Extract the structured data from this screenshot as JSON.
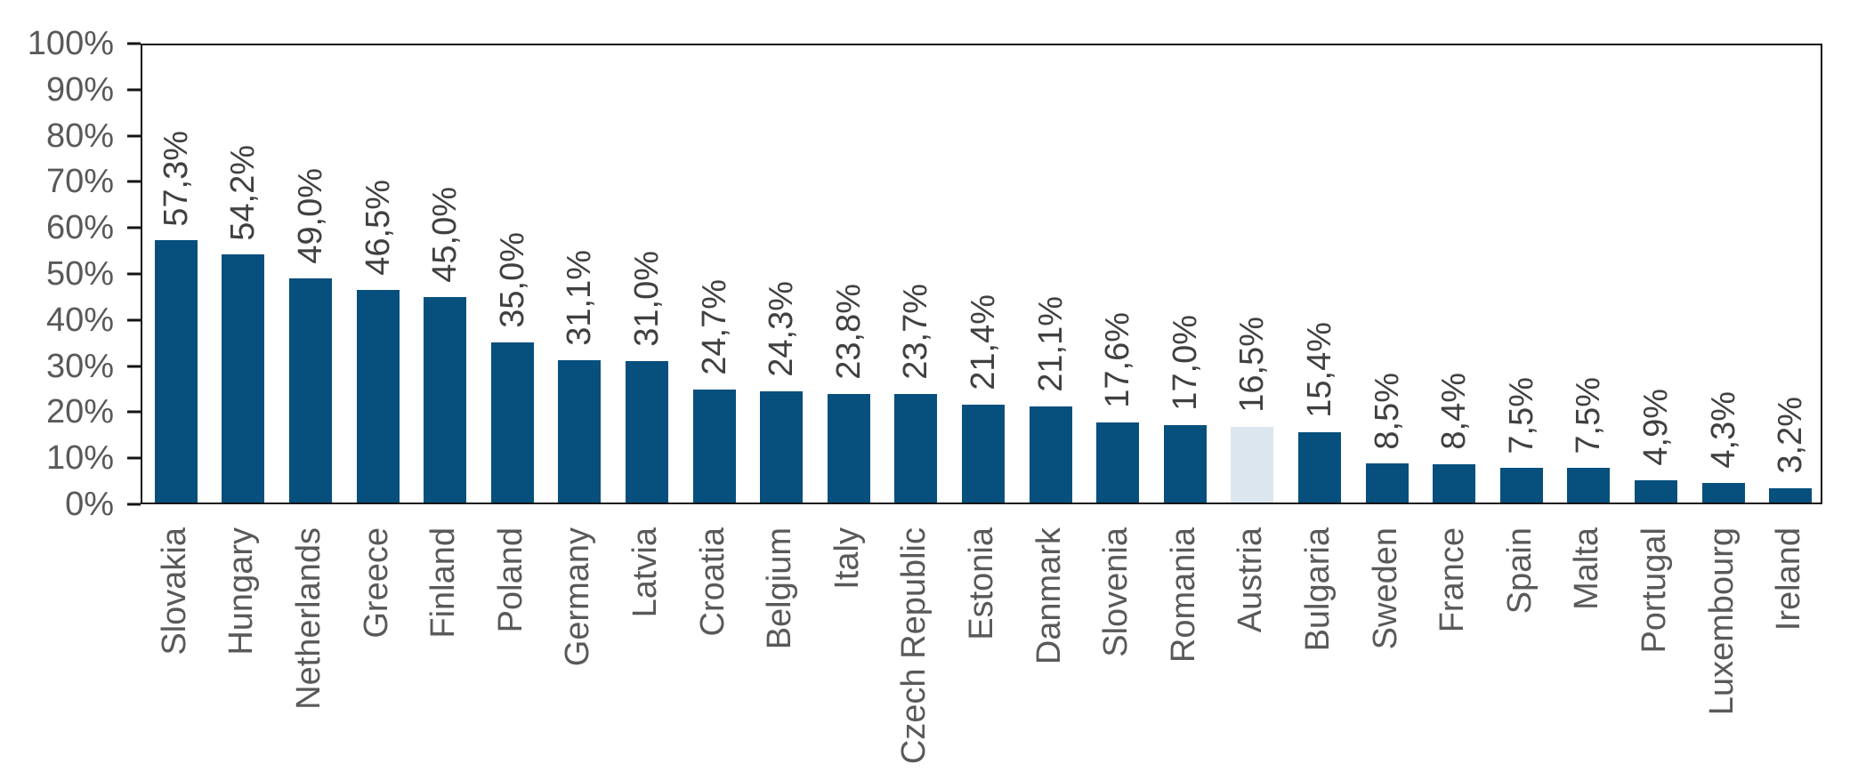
{
  "chart_data": {
    "type": "bar",
    "title": "",
    "xlabel": "",
    "ylabel": "",
    "ylim": [
      0,
      100
    ],
    "grid": false,
    "legend": null,
    "y_ticks": [
      "0%",
      "10%",
      "20%",
      "30%",
      "40%",
      "50%",
      "60%",
      "70%",
      "80%",
      "90%",
      "100%"
    ],
    "categories": [
      "Slovakia",
      "Hungary",
      "Netherlands",
      "Greece",
      "Finland",
      "Poland",
      "Germany",
      "Latvia",
      "Croatia",
      "Belgium",
      "Italy",
      "Czech Republic",
      "Estonia",
      "Danmark",
      "Slovenia",
      "Romania",
      "Austria",
      "Bulgaria",
      "Sweden",
      "France",
      "Spain",
      "Malta",
      "Portugal",
      "Luxembourg",
      "Ireland"
    ],
    "values": [
      57.3,
      54.2,
      49.0,
      46.5,
      45.0,
      35.0,
      31.1,
      31.0,
      24.7,
      24.3,
      23.8,
      23.7,
      21.4,
      21.1,
      17.6,
      17.0,
      16.5,
      15.4,
      8.5,
      8.4,
      7.5,
      7.5,
      4.9,
      4.3,
      3.2
    ],
    "value_labels": [
      "57,3%",
      "54,2%",
      "49,0%",
      "46,5%",
      "45,0%",
      "35,0%",
      "31,1%",
      "31,0%",
      "24,7%",
      "24,3%",
      "23,8%",
      "23,7%",
      "21,4%",
      "21,1%",
      "17,6%",
      "17,0%",
      "16,5%",
      "15,4%",
      "8,5%",
      "8,4%",
      "7,5%",
      "7,5%",
      "4,9%",
      "4,3%",
      "3,2%"
    ],
    "highlight_category": "Austria",
    "colors": {
      "bar": "#074F7D",
      "highlight_bar": "#DCE6EE",
      "tick_label": "#595959",
      "value_label": "#404040",
      "category_label": "#595959",
      "axis_line": "#141414"
    }
  }
}
